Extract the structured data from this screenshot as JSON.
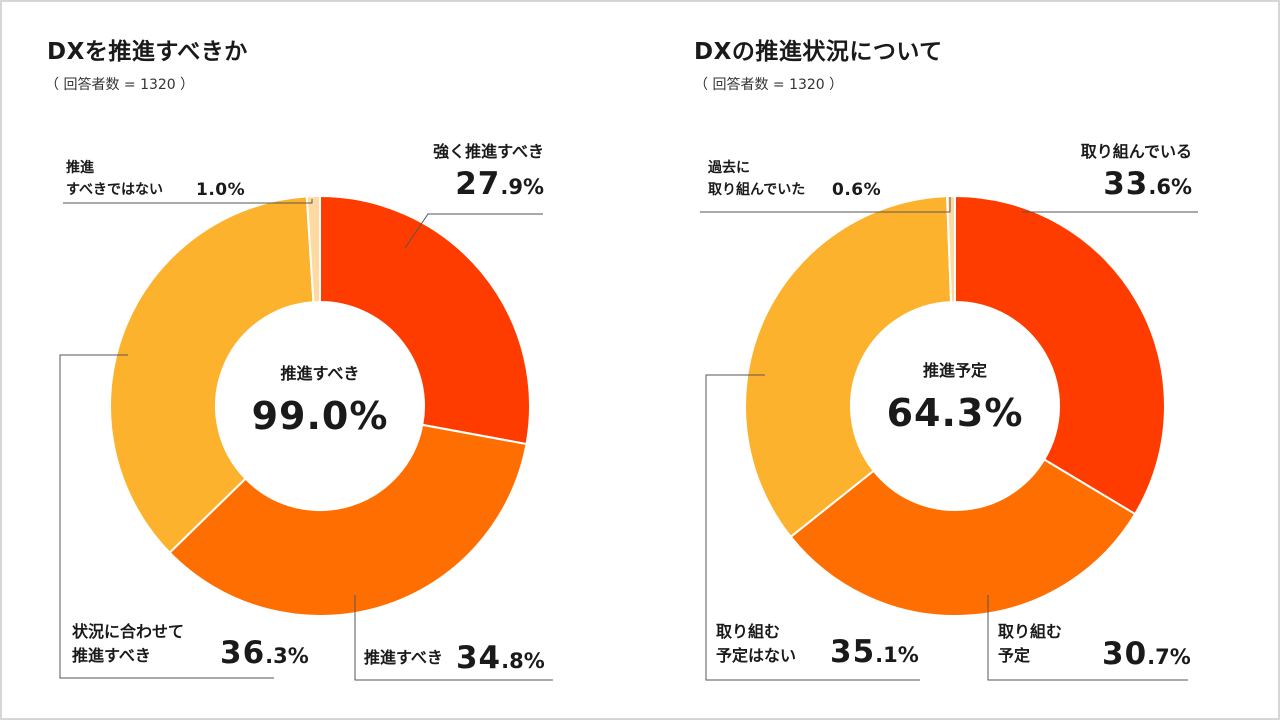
{
  "colors": {
    "strong": "#ff3c00",
    "should": "#ff6e00",
    "depends": "#fdb22e",
    "not": "#ffdaa0",
    "line": "#555555"
  },
  "chart_data": [
    {
      "type": "pie",
      "title": "DXを推進すべきか",
      "subtitle": "（ 回答者数 = 1320 ）",
      "center_label": "推進すべき",
      "center_value": "99.0%",
      "slices": [
        {
          "name": "強く推進すべき",
          "label_lines": [
            "強く推進すべき"
          ],
          "value": 27.9,
          "int": "27",
          "dec": ".9%"
        },
        {
          "name": "推進すべき",
          "label_lines": [
            "推進すべき"
          ],
          "value": 34.8,
          "int": "34",
          "dec": ".8%"
        },
        {
          "name": "状況に合わせて推進すべき",
          "label_lines": [
            "状況に合わせて",
            "推進すべき"
          ],
          "value": 36.3,
          "int": "36",
          "dec": ".3%"
        },
        {
          "name": "推進すべきではない",
          "label_lines": [
            "推進",
            "すべきではない"
          ],
          "value": 1.0,
          "pct": "1.0%"
        }
      ]
    },
    {
      "type": "pie",
      "title": "DXの推進状況について",
      "subtitle": "（ 回答者数 = 1320 ）",
      "center_label": "推進予定",
      "center_value": "64.3%",
      "slices": [
        {
          "name": "取り組んでいる",
          "label_lines": [
            "取り組んでいる"
          ],
          "value": 33.6,
          "int": "33",
          "dec": ".6%"
        },
        {
          "name": "取り組む予定",
          "label_lines": [
            "取り組む",
            "予定"
          ],
          "value": 30.7,
          "int": "30",
          "dec": ".7%"
        },
        {
          "name": "取り組む予定はない",
          "label_lines": [
            "取り組む",
            "予定はない"
          ],
          "value": 35.1,
          "int": "35",
          "dec": ".1%"
        },
        {
          "name": "過去に取り組んでいた",
          "label_lines": [
            "過去に",
            "取り組んでいた"
          ],
          "value": 0.6,
          "pct": "0.6%"
        }
      ]
    }
  ]
}
